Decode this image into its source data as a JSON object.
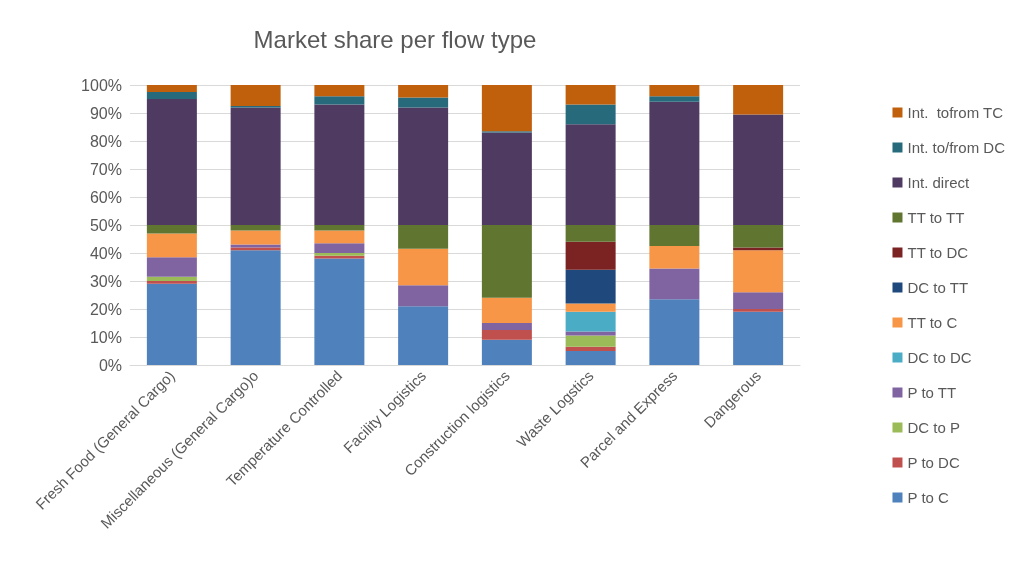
{
  "chart_data": {
    "type": "bar",
    "title": "Market share per flow type",
    "stacked": true,
    "grid": "y",
    "legend": "right",
    "categories": [
      "Fresh Food (General Cargo)",
      "Miscellaneous (General Cargo)o",
      "Temperature Controlled",
      "Facility Logistics",
      "Construction logistics",
      "Waste Logstics",
      "Parcel and Express",
      "Dangerous"
    ],
    "ylim": [
      0,
      100
    ],
    "yticks": [
      {
        "value": 0,
        "label": "0%"
      },
      {
        "value": 10,
        "label": "10%"
      },
      {
        "value": 20,
        "label": "20%"
      },
      {
        "value": 30,
        "label": "30%"
      },
      {
        "value": 40,
        "label": "40%"
      },
      {
        "value": 50,
        "label": "50%"
      },
      {
        "value": 60,
        "label": "60%"
      },
      {
        "value": 70,
        "label": "70%"
      },
      {
        "value": 80,
        "label": "80%"
      },
      {
        "value": 90,
        "label": "90%"
      },
      {
        "value": 100,
        "label": "100%"
      }
    ],
    "series": [
      {
        "name": "P to C",
        "color": "#4f81bd",
        "values": [
          29,
          41,
          38,
          21,
          9,
          5,
          23.5,
          19
        ]
      },
      {
        "name": "P to DC",
        "color": "#c0504d",
        "values": [
          1,
          1,
          1,
          0,
          3.5,
          1.5,
          0,
          1
        ]
      },
      {
        "name": "DC to P",
        "color": "#9bbb59",
        "values": [
          1.5,
          0,
          1,
          0,
          0,
          4,
          0,
          0
        ]
      },
      {
        "name": "P to TT",
        "color": "#8064a2",
        "values": [
          7,
          1,
          3.5,
          7.5,
          2.5,
          1.5,
          11,
          6
        ]
      },
      {
        "name": "DC to DC",
        "color": "#4bacc6",
        "values": [
          0,
          0,
          0,
          0,
          0,
          7,
          0,
          0
        ]
      },
      {
        "name": "TT to C",
        "color": "#f79646",
        "values": [
          8.5,
          5,
          4.5,
          13,
          9,
          3,
          8,
          15
        ]
      },
      {
        "name": "DC to TT",
        "color": "#1f497d",
        "values": [
          0,
          0,
          0,
          0,
          0,
          12,
          0,
          0
        ]
      },
      {
        "name": "TT to DC",
        "color": "#7b2222",
        "values": [
          0,
          0,
          0,
          0,
          0,
          10,
          0,
          1
        ]
      },
      {
        "name": "TT to TT",
        "color": "#5f7530",
        "values": [
          3,
          2,
          2,
          8.5,
          26,
          6,
          7.5,
          8
        ]
      },
      {
        "name": "Int. direct",
        "color": "#4f3b62",
        "values": [
          45,
          42,
          43,
          42,
          33,
          36,
          44,
          39.5
        ]
      },
      {
        "name": "Int. to/from DC",
        "color": "#276a7c",
        "values": [
          2.5,
          0.5,
          3,
          3.5,
          0.5,
          7,
          2,
          0
        ]
      },
      {
        "name": "Int.  tofrom TC",
        "color": "#c0600c",
        "values": [
          2.5,
          7.5,
          4,
          4.5,
          16.5,
          7,
          4,
          10.5
        ]
      }
    ]
  }
}
